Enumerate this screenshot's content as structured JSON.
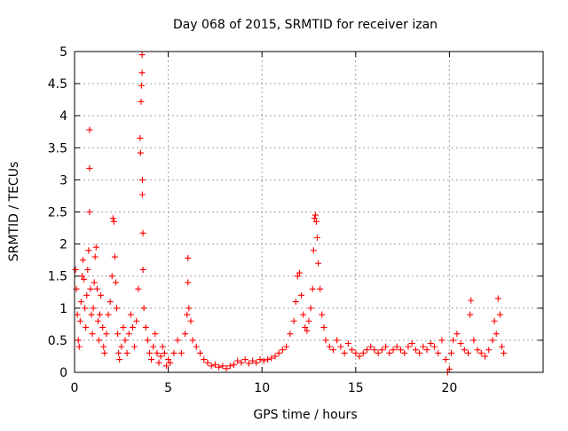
{
  "chart_data": {
    "type": "scatter",
    "title": "Day 068 of 2015, SRMTID for receiver izan",
    "xlabel": "GPS time / hours",
    "ylabel": "SRMTID / TECUs",
    "xlim": [
      0,
      25
    ],
    "ylim": [
      0,
      5
    ],
    "xticks": [
      0,
      5,
      10,
      15,
      20
    ],
    "xtick_labels": [
      "0",
      "5",
      "10",
      "15",
      "20"
    ],
    "yticks": [
      0,
      0.5,
      1,
      1.5,
      2,
      2.5,
      3,
      3.5,
      4,
      4.5,
      5
    ],
    "ytick_labels": [
      "0",
      "0.5",
      "1",
      "1.5",
      "2",
      "2.5",
      "3",
      "3.5",
      "4",
      "4.5",
      "5"
    ],
    "grid": true,
    "marker": "+",
    "series": [
      {
        "name": "SRMTID",
        "color": "#ff0000",
        "points": [
          [
            0.05,
            1.6
          ],
          [
            0.1,
            1.3
          ],
          [
            0.15,
            0.9
          ],
          [
            0.2,
            0.5
          ],
          [
            0.25,
            0.4
          ],
          [
            0.3,
            0.8
          ],
          [
            0.35,
            1.1
          ],
          [
            0.4,
            1.5
          ],
          [
            0.45,
            1.75
          ],
          [
            0.5,
            1.45
          ],
          [
            0.55,
            1.0
          ],
          [
            0.6,
            0.7
          ],
          [
            0.65,
            1.2
          ],
          [
            0.7,
            1.6
          ],
          [
            0.75,
            1.9
          ],
          [
            0.8,
            3.78
          ],
          [
            0.8,
            3.18
          ],
          [
            0.8,
            2.5
          ],
          [
            0.85,
            1.3
          ],
          [
            0.9,
            0.9
          ],
          [
            0.95,
            0.6
          ],
          [
            1.0,
            1.0
          ],
          [
            1.05,
            1.4
          ],
          [
            1.1,
            1.8
          ],
          [
            1.15,
            1.95
          ],
          [
            1.2,
            1.3
          ],
          [
            1.25,
            0.8
          ],
          [
            1.3,
            0.5
          ],
          [
            1.35,
            0.9
          ],
          [
            1.4,
            1.2
          ],
          [
            1.5,
            0.7
          ],
          [
            1.55,
            0.4
          ],
          [
            1.6,
            0.3
          ],
          [
            1.7,
            0.6
          ],
          [
            1.8,
            0.9
          ],
          [
            1.9,
            1.1
          ],
          [
            2.0,
            1.5
          ],
          [
            2.05,
            2.4
          ],
          [
            2.1,
            2.35
          ],
          [
            2.15,
            1.8
          ],
          [
            2.2,
            1.4
          ],
          [
            2.25,
            1.0
          ],
          [
            2.3,
            0.6
          ],
          [
            2.35,
            0.3
          ],
          [
            2.4,
            0.2
          ],
          [
            2.5,
            0.4
          ],
          [
            2.6,
            0.7
          ],
          [
            2.7,
            0.5
          ],
          [
            2.8,
            0.3
          ],
          [
            2.9,
            0.6
          ],
          [
            3.0,
            0.9
          ],
          [
            3.1,
            0.7
          ],
          [
            3.2,
            0.4
          ],
          [
            3.3,
            0.8
          ],
          [
            3.4,
            1.3
          ],
          [
            3.5,
            3.65
          ],
          [
            3.52,
            3.42
          ],
          [
            3.55,
            4.22
          ],
          [
            3.57,
            4.47
          ],
          [
            3.6,
            4.67
          ],
          [
            3.6,
            4.95
          ],
          [
            3.62,
            3.0
          ],
          [
            3.62,
            2.77
          ],
          [
            3.65,
            2.17
          ],
          [
            3.65,
            1.6
          ],
          [
            3.7,
            1.0
          ],
          [
            3.8,
            0.7
          ],
          [
            3.9,
            0.5
          ],
          [
            4.0,
            0.3
          ],
          [
            4.1,
            0.2
          ],
          [
            4.2,
            0.4
          ],
          [
            4.3,
            0.6
          ],
          [
            4.4,
            0.3
          ],
          [
            4.5,
            0.15
          ],
          [
            4.6,
            0.25
          ],
          [
            4.7,
            0.4
          ],
          [
            4.8,
            0.3
          ],
          [
            4.9,
            0.1
          ],
          [
            5.0,
            0.2
          ],
          [
            5.1,
            0.15
          ],
          [
            5.3,
            0.3
          ],
          [
            5.5,
            0.5
          ],
          [
            5.7,
            0.3
          ],
          [
            5.9,
            0.6
          ],
          [
            6.0,
            0.9
          ],
          [
            6.05,
            1.78
          ],
          [
            6.05,
            1.4
          ],
          [
            6.1,
            1.0
          ],
          [
            6.2,
            0.8
          ],
          [
            6.3,
            0.5
          ],
          [
            6.5,
            0.4
          ],
          [
            6.7,
            0.3
          ],
          [
            6.9,
            0.2
          ],
          [
            7.1,
            0.15
          ],
          [
            7.3,
            0.1
          ],
          [
            7.5,
            0.12
          ],
          [
            7.7,
            0.08
          ],
          [
            7.9,
            0.1
          ],
          [
            8.1,
            0.06
          ],
          [
            8.3,
            0.1
          ],
          [
            8.5,
            0.12
          ],
          [
            8.7,
            0.18
          ],
          [
            8.9,
            0.15
          ],
          [
            9.1,
            0.2
          ],
          [
            9.3,
            0.14
          ],
          [
            9.5,
            0.18
          ],
          [
            9.7,
            0.15
          ],
          [
            9.9,
            0.2
          ],
          [
            10.1,
            0.18
          ],
          [
            10.3,
            0.2
          ],
          [
            10.5,
            0.22
          ],
          [
            10.7,
            0.25
          ],
          [
            10.9,
            0.3
          ],
          [
            11.1,
            0.35
          ],
          [
            11.3,
            0.4
          ],
          [
            11.5,
            0.6
          ],
          [
            11.7,
            0.8
          ],
          [
            11.8,
            1.1
          ],
          [
            11.9,
            1.5
          ],
          [
            12.0,
            1.55
          ],
          [
            12.1,
            1.2
          ],
          [
            12.2,
            0.9
          ],
          [
            12.3,
            0.7
          ],
          [
            12.4,
            0.65
          ],
          [
            12.5,
            0.8
          ],
          [
            12.6,
            1.0
          ],
          [
            12.7,
            1.3
          ],
          [
            12.75,
            1.9
          ],
          [
            12.8,
            2.4
          ],
          [
            12.85,
            2.45
          ],
          [
            12.9,
            2.35
          ],
          [
            12.95,
            2.1
          ],
          [
            13.0,
            1.7
          ],
          [
            13.1,
            1.3
          ],
          [
            13.2,
            0.9
          ],
          [
            13.3,
            0.7
          ],
          [
            13.4,
            0.5
          ],
          [
            13.6,
            0.4
          ],
          [
            13.8,
            0.35
          ],
          [
            14.0,
            0.5
          ],
          [
            14.2,
            0.4
          ],
          [
            14.4,
            0.3
          ],
          [
            14.6,
            0.45
          ],
          [
            14.8,
            0.35
          ],
          [
            15.0,
            0.3
          ],
          [
            15.2,
            0.25
          ],
          [
            15.4,
            0.3
          ],
          [
            15.6,
            0.35
          ],
          [
            15.8,
            0.4
          ],
          [
            16.0,
            0.35
          ],
          [
            16.2,
            0.3
          ],
          [
            16.4,
            0.35
          ],
          [
            16.6,
            0.4
          ],
          [
            16.8,
            0.3
          ],
          [
            17.0,
            0.35
          ],
          [
            17.2,
            0.4
          ],
          [
            17.4,
            0.35
          ],
          [
            17.6,
            0.3
          ],
          [
            17.8,
            0.4
          ],
          [
            18.0,
            0.45
          ],
          [
            18.2,
            0.35
          ],
          [
            18.4,
            0.3
          ],
          [
            18.6,
            0.4
          ],
          [
            18.8,
            0.35
          ],
          [
            19.0,
            0.45
          ],
          [
            19.2,
            0.4
          ],
          [
            19.4,
            0.3
          ],
          [
            19.6,
            0.5
          ],
          [
            19.8,
            0.2
          ],
          [
            19.9,
            0.0
          ],
          [
            20.0,
            0.05
          ],
          [
            20.1,
            0.3
          ],
          [
            20.2,
            0.5
          ],
          [
            20.4,
            0.6
          ],
          [
            20.6,
            0.45
          ],
          [
            20.8,
            0.35
          ],
          [
            21.0,
            0.3
          ],
          [
            21.1,
            0.9
          ],
          [
            21.15,
            1.12
          ],
          [
            21.3,
            0.5
          ],
          [
            21.5,
            0.35
          ],
          [
            21.7,
            0.3
          ],
          [
            21.9,
            0.25
          ],
          [
            22.1,
            0.35
          ],
          [
            22.3,
            0.5
          ],
          [
            22.4,
            0.8
          ],
          [
            22.5,
            0.6
          ],
          [
            22.6,
            1.15
          ],
          [
            22.7,
            0.9
          ],
          [
            22.8,
            0.4
          ],
          [
            22.9,
            0.3
          ]
        ]
      }
    ]
  }
}
